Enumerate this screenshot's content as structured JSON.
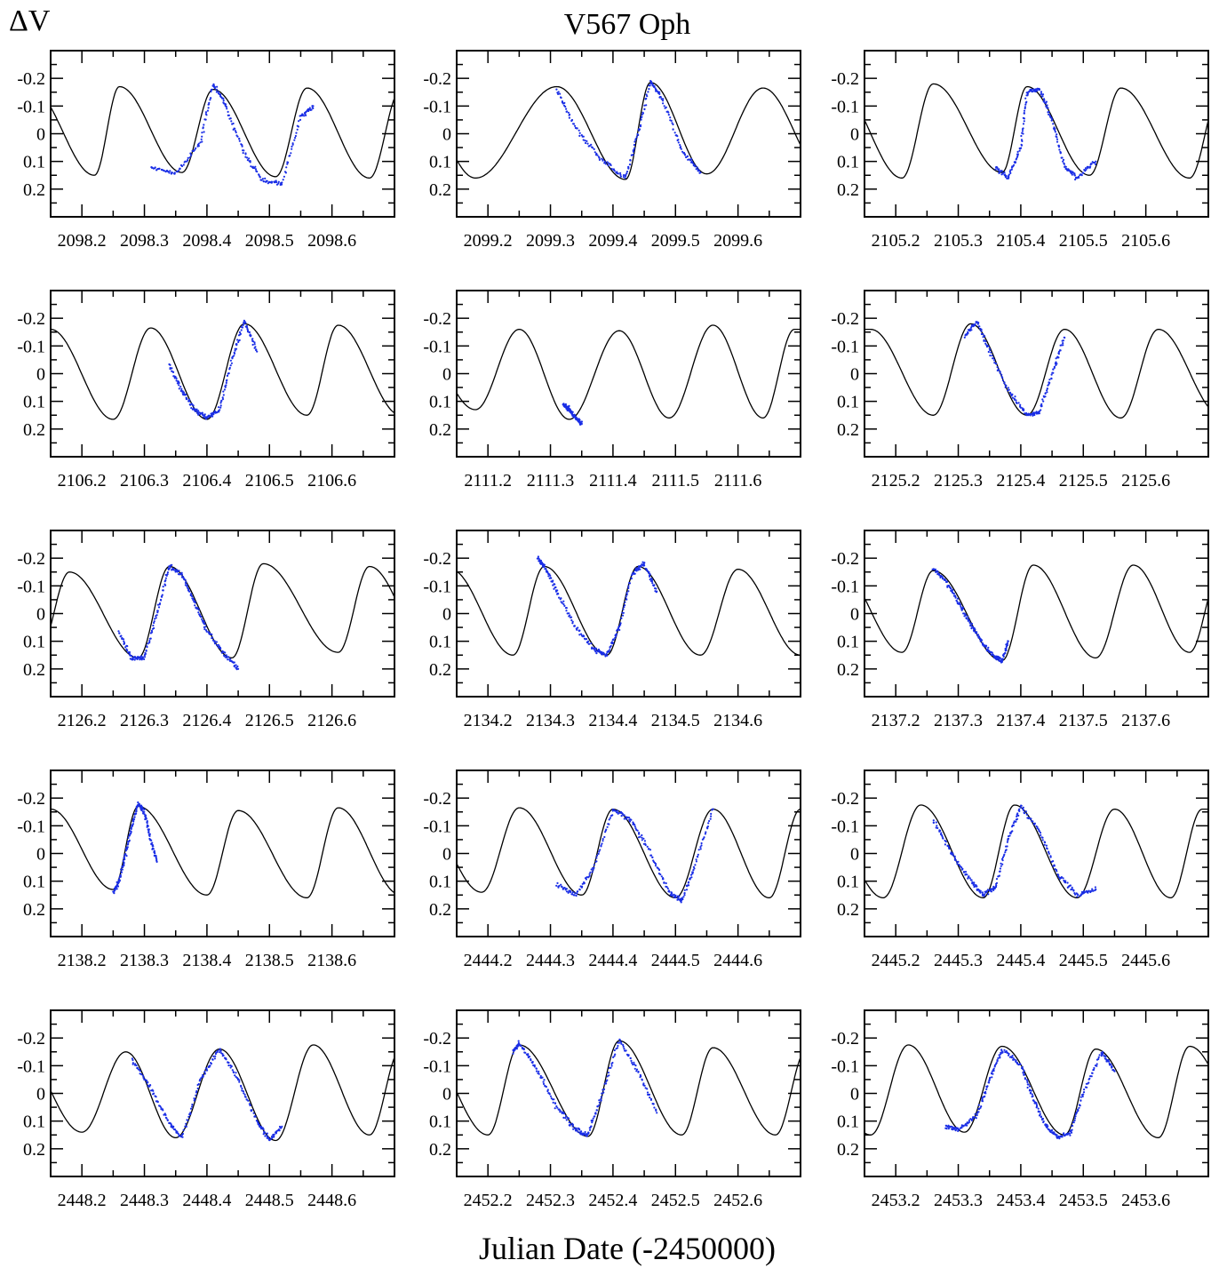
{
  "chart_data": {
    "type": "scatter",
    "title": "V567 Oph",
    "ylabel": "ΔV",
    "xlabel": "Julian Date (-2450000)",
    "y_tick_labels": [
      "-0.2",
      "-0.1",
      "0",
      "0.1",
      "0.2"
    ],
    "y_ticks": [
      -0.2,
      -0.1,
      0,
      0.1,
      0.2
    ],
    "ylim": [
      0.3,
      -0.3
    ],
    "y_axis_inverted": true,
    "colors": {
      "observations": "#1a2ee6",
      "model": "#000000"
    },
    "legend": "none",
    "grid": false,
    "series_types": {
      "observations": "scatter",
      "model": "line"
    },
    "panels": [
      {
        "x_tick_labels": [
          "2098.2",
          "2098.3",
          "2098.4",
          "2098.5",
          "2098.6"
        ],
        "xlim": [
          2098.15,
          2098.7
        ],
        "model": {
          "min_times": [
            2098.22,
            2098.36,
            2098.51,
            2098.66
          ],
          "max_times": [
            2098.26,
            2098.41,
            2098.56
          ],
          "max_levels": [
            -0.17,
            -0.16,
            -0.165
          ],
          "min_levels": [
            0.15,
            0.14,
            0.155,
            0.16
          ]
        },
        "observations": {
          "x": [
            2098.31,
            2098.35,
            2098.39,
            2098.41,
            2098.43,
            2098.46,
            2098.49,
            2098.52,
            2098.55,
            2098.57
          ],
          "y": [
            0.12,
            0.145,
            0.03,
            -0.18,
            -0.1,
            0.07,
            0.17,
            0.18,
            -0.06,
            -0.1
          ]
        }
      },
      {
        "x_tick_labels": [
          "2099.2",
          "2099.3",
          "2099.4",
          "2099.5",
          "2099.6"
        ],
        "xlim": [
          2099.15,
          2099.7
        ],
        "model": {
          "min_times": [
            2099.18,
            2099.42,
            2099.55
          ],
          "max_times": [
            2099.31,
            2099.46,
            2099.64
          ],
          "max_levels": [
            -0.17,
            -0.185,
            -0.165
          ],
          "min_levels": [
            0.16,
            0.165,
            0.145
          ]
        },
        "observations": {
          "x": [
            2099.31,
            2099.34,
            2099.38,
            2099.42,
            2099.44,
            2099.46,
            2099.48,
            2099.51,
            2099.54
          ],
          "y": [
            -0.16,
            -0.02,
            0.09,
            0.16,
            0.0,
            -0.19,
            -0.12,
            0.06,
            0.14
          ]
        }
      },
      {
        "x_tick_labels": [
          "2105.2",
          "2105.3",
          "2105.4",
          "2105.5",
          "2105.6"
        ],
        "xlim": [
          2105.15,
          2105.7
        ],
        "model": {
          "min_times": [
            2105.21,
            2105.37,
            2105.51,
            2105.67
          ],
          "max_times": [
            2105.26,
            2105.41,
            2105.56
          ],
          "max_levels": [
            -0.18,
            -0.17,
            -0.165
          ],
          "min_levels": [
            0.16,
            0.14,
            0.15,
            0.16
          ]
        },
        "observations": {
          "x": [
            2105.36,
            2105.38,
            2105.4,
            2105.41,
            2105.43,
            2105.45,
            2105.47,
            2105.49,
            2105.52
          ],
          "y": [
            0.12,
            0.16,
            0.05,
            -0.15,
            -0.16,
            -0.05,
            0.12,
            0.16,
            0.1
          ]
        }
      },
      {
        "x_tick_labels": [
          "2106.2",
          "2106.3",
          "2106.4",
          "2106.5",
          "2106.6"
        ],
        "xlim": [
          2106.15,
          2106.7
        ],
        "model": {
          "min_times": [
            2106.25,
            2106.4,
            2106.56
          ],
          "max_times": [
            2106.31,
            2106.46,
            2106.61
          ],
          "max_levels": [
            -0.165,
            -0.18,
            -0.175
          ],
          "min_levels": [
            0.165,
            0.165,
            0.15
          ]
        },
        "observations": {
          "x": [
            2106.34,
            2106.36,
            2106.38,
            2106.4,
            2106.42,
            2106.44,
            2106.46,
            2106.48
          ],
          "y": [
            -0.03,
            0.06,
            0.13,
            0.16,
            0.13,
            -0.05,
            -0.19,
            -0.08
          ]
        }
      },
      {
        "x_tick_labels": [
          "2111.2",
          "2111.3",
          "2111.4",
          "2111.5",
          "2111.6"
        ],
        "xlim": [
          2111.15,
          2111.7
        ],
        "model": {
          "min_times": [
            2111.18,
            2111.33,
            2111.49,
            2111.64
          ],
          "max_times": [
            2111.25,
            2111.41,
            2111.56
          ],
          "max_levels": [
            -0.16,
            -0.155,
            -0.175
          ],
          "min_levels": [
            0.13,
            0.165,
            0.16,
            0.16
          ]
        },
        "observations": {
          "x": [
            2111.32,
            2111.33,
            2111.34,
            2111.35
          ],
          "y": [
            0.11,
            0.13,
            0.16,
            0.18
          ]
        }
      },
      {
        "x_tick_labels": [
          "2125.2",
          "2125.3",
          "2125.4",
          "2125.5",
          "2125.6"
        ],
        "xlim": [
          2125.15,
          2125.7
        ],
        "model": {
          "min_times": [
            2125.26,
            2125.41,
            2125.56
          ],
          "max_times": [
            2125.32,
            2125.47,
            2125.62
          ],
          "max_levels": [
            -0.18,
            -0.16,
            -0.16
          ],
          "min_levels": [
            0.15,
            0.15,
            0.16
          ]
        },
        "observations": {
          "x": [
            2125.31,
            2125.33,
            2125.35,
            2125.38,
            2125.41,
            2125.43,
            2125.45,
            2125.47
          ],
          "y": [
            -0.13,
            -0.19,
            -0.08,
            0.06,
            0.15,
            0.14,
            0.0,
            -0.13
          ]
        }
      },
      {
        "x_tick_labels": [
          "2126.2",
          "2126.3",
          "2126.4",
          "2126.5",
          "2126.6"
        ],
        "xlim": [
          2126.15,
          2126.7
        ],
        "model": {
          "min_times": [
            2126.29,
            2126.44,
            2126.61
          ],
          "max_times": [
            2126.18,
            2126.34,
            2126.49,
            2126.66
          ],
          "max_levels": [
            -0.15,
            -0.17,
            -0.18,
            -0.17
          ],
          "min_levels": [
            0.16,
            0.16,
            0.14
          ]
        },
        "observations": {
          "x": [
            2126.26,
            2126.28,
            2126.3,
            2126.32,
            2126.34,
            2126.36,
            2126.38,
            2126.4,
            2126.43,
            2126.45
          ],
          "y": [
            0.07,
            0.16,
            0.16,
            0.0,
            -0.17,
            -0.14,
            -0.04,
            0.06,
            0.15,
            0.2
          ]
        }
      },
      {
        "x_tick_labels": [
          "2134.2",
          "2134.3",
          "2134.4",
          "2134.5",
          "2134.6"
        ],
        "xlim": [
          2134.15,
          2134.7
        ],
        "model": {
          "min_times": [
            2134.24,
            2134.39,
            2134.54
          ],
          "max_times": [
            2134.29,
            2134.44,
            2134.6
          ],
          "max_levels": [
            -0.17,
            -0.17,
            -0.16
          ],
          "min_levels": [
            0.15,
            0.15,
            0.15
          ]
        },
        "observations": {
          "x": [
            2134.28,
            2134.29,
            2134.31,
            2134.34,
            2134.37,
            2134.39,
            2134.41,
            2134.43,
            2134.45,
            2134.47
          ],
          "y": [
            -0.2,
            -0.17,
            -0.08,
            0.05,
            0.13,
            0.15,
            0.05,
            -0.14,
            -0.18,
            -0.08
          ]
        }
      },
      {
        "x_tick_labels": [
          "2137.2",
          "2137.3",
          "2137.4",
          "2137.5",
          "2137.6"
        ],
        "xlim": [
          2137.15,
          2137.7
        ],
        "model": {
          "min_times": [
            2137.21,
            2137.37,
            2137.52,
            2137.67
          ],
          "max_times": [
            2137.26,
            2137.42,
            2137.58
          ],
          "max_levels": [
            -0.155,
            -0.175,
            -0.175
          ],
          "min_levels": [
            0.14,
            0.17,
            0.16,
            0.14
          ]
        },
        "observations": {
          "x": [
            2137.26,
            2137.28,
            2137.3,
            2137.32,
            2137.34,
            2137.36,
            2137.37,
            2137.38
          ],
          "y": [
            -0.16,
            -0.12,
            -0.04,
            0.04,
            0.11,
            0.16,
            0.17,
            0.1
          ]
        }
      },
      {
        "x_tick_labels": [
          "2138.2",
          "2138.3",
          "2138.4",
          "2138.5",
          "2138.6"
        ],
        "xlim": [
          2138.15,
          2138.7
        ],
        "model": {
          "min_times": [
            2138.25,
            2138.4,
            2138.56
          ],
          "max_times": [
            2138.29,
            2138.45,
            2138.61
          ],
          "max_levels": [
            -0.17,
            -0.155,
            -0.165
          ],
          "min_levels": [
            0.13,
            0.15,
            0.16
          ]
        },
        "observations": {
          "x": [
            2138.25,
            2138.26,
            2138.27,
            2138.28,
            2138.29,
            2138.3,
            2138.31,
            2138.32
          ],
          "y": [
            0.14,
            0.1,
            0.0,
            -0.1,
            -0.18,
            -0.15,
            -0.05,
            0.03
          ]
        }
      },
      {
        "x_tick_labels": [
          "2444.2",
          "2444.3",
          "2444.4",
          "2444.5",
          "2444.6"
        ],
        "xlim": [
          2444.15,
          2444.7
        ],
        "model": {
          "min_times": [
            2444.19,
            2444.35,
            2444.5,
            2444.65
          ],
          "max_times": [
            2444.25,
            2444.4,
            2444.56
          ],
          "max_levels": [
            -0.165,
            -0.16,
            -0.16
          ],
          "min_levels": [
            0.14,
            0.15,
            0.16,
            0.16
          ]
        },
        "observations": {
          "x": [
            2444.31,
            2444.34,
            2444.37,
            2444.4,
            2444.43,
            2444.46,
            2444.49,
            2444.51,
            2444.53,
            2444.56
          ],
          "y": [
            0.11,
            0.15,
            0.05,
            -0.16,
            -0.12,
            0.0,
            0.14,
            0.17,
            0.05,
            -0.16
          ]
        }
      },
      {
        "x_tick_labels": [
          "2445.2",
          "2445.3",
          "2445.4",
          "2445.5",
          "2445.6"
        ],
        "xlim": [
          2445.15,
          2445.7
        ],
        "model": {
          "min_times": [
            2445.18,
            2445.34,
            2445.49,
            2445.64
          ],
          "max_times": [
            2445.24,
            2445.39,
            2445.55
          ],
          "max_levels": [
            -0.175,
            -0.175,
            -0.16
          ],
          "min_levels": [
            0.16,
            0.16,
            0.16,
            0.16
          ]
        },
        "observations": {
          "x": [
            2445.26,
            2445.29,
            2445.32,
            2445.34,
            2445.36,
            2445.38,
            2445.4,
            2445.43,
            2445.46,
            2445.49,
            2445.52
          ],
          "y": [
            -0.12,
            0.0,
            0.1,
            0.15,
            0.12,
            -0.05,
            -0.17,
            -0.08,
            0.08,
            0.15,
            0.13
          ]
        }
      },
      {
        "x_tick_labels": [
          "2448.2",
          "2448.3",
          "2448.4",
          "2448.5",
          "2448.6"
        ],
        "xlim": [
          2448.15,
          2448.7
        ],
        "model": {
          "min_times": [
            2448.2,
            2448.35,
            2448.51,
            2448.66
          ],
          "max_times": [
            2448.27,
            2448.42,
            2448.57
          ],
          "max_levels": [
            -0.15,
            -0.16,
            -0.175
          ],
          "min_levels": [
            0.14,
            0.16,
            0.17,
            0.15
          ]
        },
        "observations": {
          "x": [
            2448.28,
            2448.31,
            2448.34,
            2448.36,
            2448.39,
            2448.42,
            2448.45,
            2448.48,
            2448.5,
            2448.52
          ],
          "y": [
            -0.12,
            -0.02,
            0.11,
            0.16,
            -0.05,
            -0.16,
            -0.05,
            0.1,
            0.17,
            0.12
          ]
        }
      },
      {
        "x_tick_labels": [
          "2452.2",
          "2452.3",
          "2452.4",
          "2452.5",
          "2452.6"
        ],
        "xlim": [
          2452.15,
          2452.7
        ],
        "model": {
          "min_times": [
            2452.2,
            2452.36,
            2452.51,
            2452.66
          ],
          "max_times": [
            2452.25,
            2452.41,
            2452.56
          ],
          "max_levels": [
            -0.175,
            -0.19,
            -0.165
          ],
          "min_levels": [
            0.15,
            0.155,
            0.15,
            0.15
          ]
        },
        "observations": {
          "x": [
            2452.24,
            2452.25,
            2452.28,
            2452.31,
            2452.34,
            2452.36,
            2452.38,
            2452.41,
            2452.44,
            2452.47
          ],
          "y": [
            -0.15,
            -0.18,
            -0.08,
            0.05,
            0.13,
            0.15,
            0.02,
            -0.19,
            -0.08,
            0.07
          ]
        }
      },
      {
        "x_tick_labels": [
          "2453.2",
          "2453.3",
          "2453.4",
          "2453.5",
          "2453.6"
        ],
        "xlim": [
          2453.15,
          2453.7
        ],
        "model": {
          "min_times": [
            2453.16,
            2453.31,
            2453.47,
            2453.62
          ],
          "max_times": [
            2453.22,
            2453.37,
            2453.52,
            2453.67
          ],
          "max_levels": [
            -0.175,
            -0.17,
            -0.16,
            -0.17
          ],
          "min_levels": [
            0.15,
            0.14,
            0.15,
            0.16
          ]
        },
        "observations": {
          "x": [
            2453.28,
            2453.3,
            2453.33,
            2453.35,
            2453.37,
            2453.4,
            2453.42,
            2453.44,
            2453.46,
            2453.48,
            2453.5,
            2453.53,
            2453.55
          ],
          "y": [
            0.12,
            0.13,
            0.08,
            -0.05,
            -0.16,
            -0.1,
            0.02,
            0.12,
            0.16,
            0.14,
            0.0,
            -0.15,
            -0.08
          ]
        }
      }
    ]
  }
}
